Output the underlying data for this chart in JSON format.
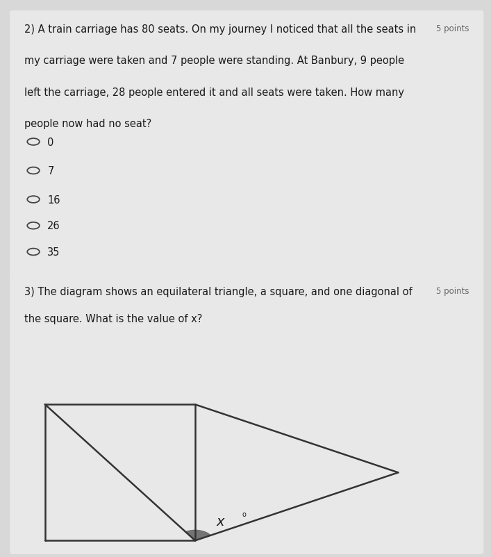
{
  "bg_color": "#d8d8d8",
  "card_bg": "#e8e8e8",
  "text_color": "#1a1a1a",
  "points_color": "#666666",
  "line_color": "#333333",
  "shade_color": "#686868",
  "radio_color": "#444444",
  "q1_line1": "2) A train carriage has 80 seats. On my journey I noticed that all the seats in",
  "q1_points": "5 points",
  "q1_line2": "my carriage were taken and 7 people were standing. At Banbury, 9 people",
  "q1_line3": "left the carriage, 28 people entered it and all seats were taken. How many",
  "q1_line4": "people now had no seat?",
  "q1_options": [
    "0",
    "7",
    "16",
    "26",
    "35"
  ],
  "q2_line1": "3) The diagram shows an equilateral triangle, a square, and one diagonal of",
  "q2_points": "5 points",
  "q2_line2": "the square. What is the value of x?",
  "font_size_main": 10.5,
  "font_size_points": 8.5,
  "font_size_options": 10.5,
  "font_size_angle": 14
}
